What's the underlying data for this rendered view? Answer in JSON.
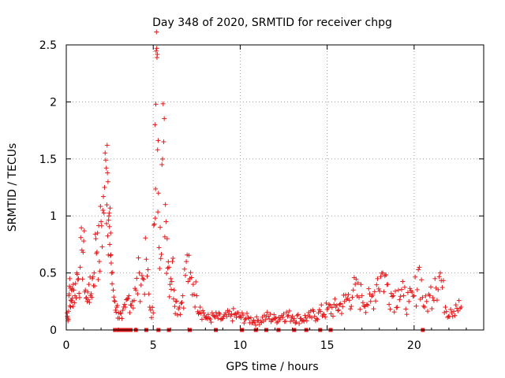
{
  "chart_data": {
    "type": "scatter",
    "title": "Day 348 of 2020, SRMTID for receiver chpg",
    "xlabel": "GPS time / hours",
    "ylabel": "SRMTID / TECUs",
    "xlim": [
      0,
      24
    ],
    "ylim": [
      0,
      2.5
    ],
    "xticks": [
      0,
      5,
      10,
      15,
      20
    ],
    "yticks": [
      0,
      0.5,
      1,
      1.5,
      2,
      2.5
    ],
    "xtick_labels": [
      "0",
      "5",
      "10",
      "15",
      "20"
    ],
    "ytick_labels": [
      "0",
      "0.5",
      "1",
      "1.5",
      "2",
      "2.5"
    ],
    "grid": true,
    "marker": "+",
    "color": "#e31a1c",
    "series": [
      {
        "name": "SRMTID",
        "x": [
          0.05,
          0.1,
          0.15,
          0.2,
          0.25,
          0.3,
          0.35,
          0.4,
          0.5,
          0.6,
          0.7,
          0.8,
          0.9,
          1.0,
          1.1,
          1.2,
          1.3,
          1.4,
          1.5,
          1.6,
          1.7,
          1.8,
          1.9,
          2.0,
          2.1,
          2.2,
          2.3,
          2.35,
          2.4,
          2.45,
          2.5,
          2.55,
          2.6,
          2.7,
          2.8,
          2.9,
          3.0,
          3.2,
          3.4,
          3.6,
          3.8,
          4.0,
          4.2,
          4.4,
          4.6,
          4.8,
          5.0,
          5.1,
          5.15,
          5.2,
          5.25,
          5.3,
          5.4,
          5.5,
          5.6,
          5.7,
          5.8,
          5.9,
          6.0,
          6.1,
          6.2,
          6.3,
          6.5,
          6.7,
          6.9,
          7.1,
          7.3,
          7.5,
          7.7,
          7.9,
          8.1,
          8.5,
          9.0,
          9.5,
          10.0,
          10.5,
          11.0,
          11.5,
          12.0,
          12.5,
          13.0,
          13.5,
          14.0,
          14.5,
          15.0,
          15.5,
          16.0,
          16.5,
          17.0,
          17.5,
          17.9,
          18.2,
          18.5,
          18.8,
          19.1,
          19.4,
          19.7,
          20.0,
          20.3,
          20.6,
          20.9,
          21.2,
          21.5,
          21.8,
          22.1,
          22.4,
          22.7
        ],
        "y": [
          0.15,
          0.08,
          0.3,
          0.45,
          0.2,
          0.35,
          0.28,
          0.4,
          0.3,
          0.5,
          0.45,
          0.55,
          0.7,
          0.78,
          0.35,
          0.25,
          0.4,
          0.3,
          0.45,
          0.5,
          0.8,
          0.85,
          0.6,
          0.95,
          1.05,
          1.25,
          1.42,
          1.62,
          1.3,
          1.0,
          0.75,
          0.85,
          0.5,
          0.35,
          0.25,
          0.2,
          0.15,
          0.1,
          0.2,
          0.3,
          0.25,
          0.35,
          0.5,
          0.45,
          0.62,
          0.2,
          0.15,
          1.8,
          1.98,
          2.47,
          1.58,
          1.2,
          0.9,
          1.45,
          1.65,
          1.1,
          0.8,
          0.55,
          0.45,
          0.6,
          0.35,
          0.25,
          0.2,
          0.3,
          0.6,
          0.45,
          0.4,
          0.3,
          0.2,
          0.15,
          0.1,
          0.12,
          0.1,
          0.14,
          0.12,
          0.1,
          0.08,
          0.12,
          0.1,
          0.14,
          0.12,
          0.1,
          0.12,
          0.15,
          0.18,
          0.2,
          0.25,
          0.35,
          0.3,
          0.25,
          0.45,
          0.5,
          0.4,
          0.3,
          0.35,
          0.3,
          0.25,
          0.3,
          0.55,
          0.2,
          0.3,
          0.45,
          0.5,
          0.2,
          0.18,
          0.22,
          0.2
        ],
        "zero_x": [
          2.8,
          3.0,
          3.1,
          3.2,
          3.3,
          3.4,
          3.5,
          3.6,
          3.7,
          4.0,
          4.6,
          5.3,
          5.9,
          7.1,
          8.6,
          10.1,
          10.9,
          11.5,
          12.2,
          13.1,
          13.8,
          14.6,
          15.2,
          20.5
        ]
      }
    ]
  }
}
